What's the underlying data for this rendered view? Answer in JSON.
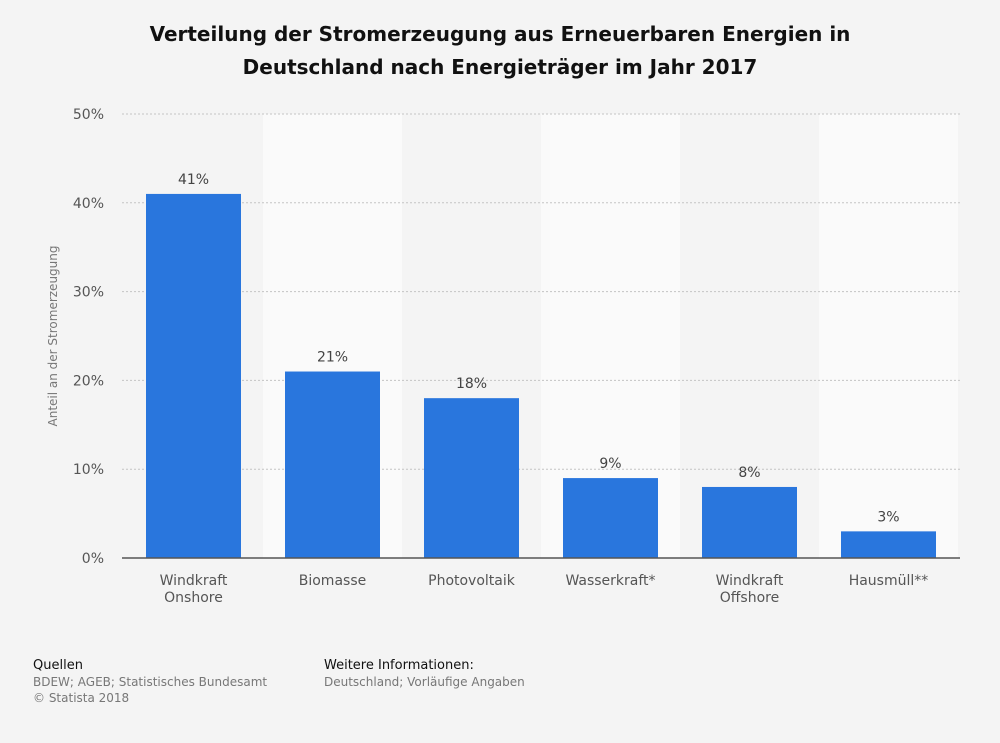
{
  "header": {
    "title_line1": "Verteilung der Stromerzeugung aus Erneuerbaren Energien in",
    "title_line2": "Deutschland nach Energieträger im Jahr 2017"
  },
  "chart_data": {
    "type": "bar",
    "title": "Verteilung der Stromerzeugung aus Erneuerbaren Energien in Deutschland nach Energieträger im Jahr 2017",
    "ylabel": "Anteil an der Stromerzeugung",
    "xlabel": "",
    "categories": [
      [
        "Windkraft",
        "Onshore"
      ],
      [
        "Biomasse"
      ],
      [
        "Photovoltaik"
      ],
      [
        "Wasserkraft*"
      ],
      [
        "Windkraft",
        "Offshore"
      ],
      [
        "Hausmüll**"
      ]
    ],
    "values": [
      41,
      21,
      18,
      9,
      8,
      3
    ],
    "value_labels": [
      "41%",
      "21%",
      "18%",
      "9%",
      "8%",
      "3%"
    ],
    "ylim": [
      0,
      50
    ],
    "yticks": [
      "0%",
      "10%",
      "20%",
      "30%",
      "40%",
      "50%"
    ],
    "grid": true,
    "bar_color": "#2976dd"
  },
  "footer": {
    "sources_heading": "Quellen",
    "sources_text": "BDEW; AGEB; Statistisches Bundesamt",
    "copyright": "© Statista 2018",
    "info_heading": "Weitere Informationen:",
    "info_text": "Deutschland; Vorläufige Angaben"
  }
}
